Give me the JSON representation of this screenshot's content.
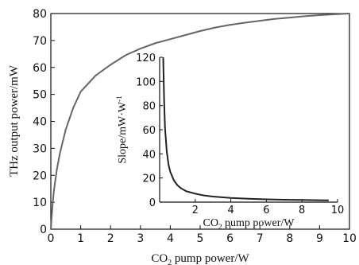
{
  "chart_data": {
    "type": "line",
    "main": {
      "xlabel_prefix": "CO",
      "xlabel_sub": "2",
      "xlabel_suffix": " pump power/W",
      "ylabel": "THz output power/mW",
      "xlim": [
        0,
        10
      ],
      "ylim": [
        0,
        80
      ],
      "xticks": [
        "0",
        "1",
        "2",
        "3",
        "4",
        "5",
        "6",
        "7",
        "8",
        "9",
        "10"
      ],
      "yticks": [
        "0",
        "10",
        "20",
        "30",
        "40",
        "50",
        "60",
        "70",
        "80"
      ],
      "color": "#666666",
      "series": [
        {
          "x": [
            0,
            0.05,
            0.1,
            0.2,
            0.3,
            0.5,
            0.75,
            1.0,
            1.5,
            2.0,
            2.5,
            3.0,
            3.5,
            4.0,
            4.5,
            5.0,
            5.5,
            6.0,
            6.5,
            7.0,
            7.5,
            8.0,
            8.5,
            9.0,
            9.5,
            10.0
          ],
          "y": [
            0,
            8,
            14,
            22,
            28,
            37,
            45,
            51,
            57,
            61,
            64.5,
            67,
            69,
            70.5,
            72,
            73.5,
            74.8,
            75.8,
            76.6,
            77.3,
            78,
            78.5,
            79,
            79.4,
            79.7,
            80
          ]
        }
      ]
    },
    "inset": {
      "xlabel_prefix": "CO",
      "xlabel_sub": "2",
      "xlabel_suffix": " pump power/W",
      "ylabel_main": "Slope/mW·W",
      "ylabel_sup": "-1",
      "xlim": [
        0,
        10
      ],
      "ylim": [
        0,
        120
      ],
      "xticks": [
        "2",
        "4",
        "6",
        "8",
        "10"
      ],
      "yticks": [
        "0",
        "20",
        "40",
        "60",
        "80",
        "100",
        "120"
      ],
      "color": "#222222",
      "series": [
        {
          "x": [
            0.2,
            0.25,
            0.3,
            0.4,
            0.5,
            0.6,
            0.8,
            1.0,
            1.2,
            1.5,
            2.0,
            2.5,
            3.0,
            4.0,
            5.0,
            6.0,
            7.0,
            8.0,
            9.0,
            9.5
          ],
          "y": [
            120,
            85,
            62,
            42,
            31,
            25,
            18,
            14,
            11.5,
            9,
            7,
            5.5,
            4.6,
            3.5,
            2.8,
            2.3,
            2.0,
            1.8,
            1.6,
            1.5
          ]
        }
      ]
    }
  }
}
